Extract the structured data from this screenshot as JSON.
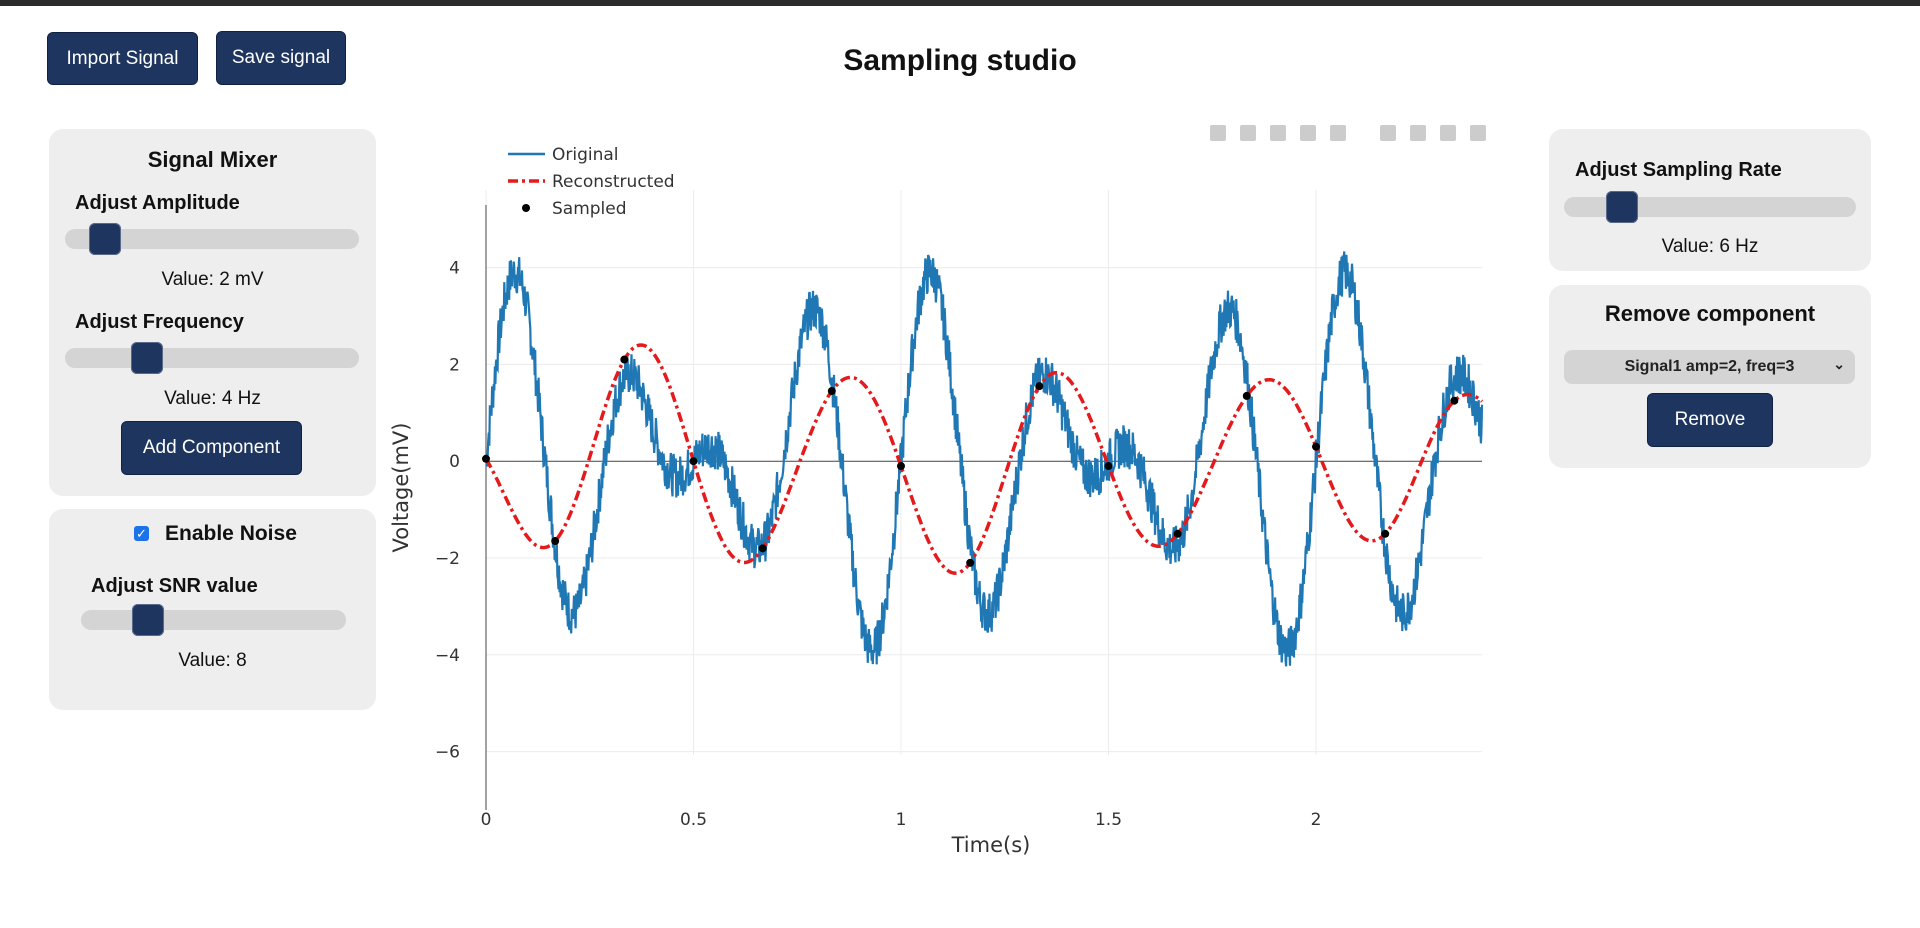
{
  "app_title": "Sampling studio",
  "header": {
    "import_label": "Import Signal",
    "save_label": "Save signal"
  },
  "mixer": {
    "title": "Signal Mixer",
    "amplitude_label": "Adjust Amplitude",
    "amplitude_value": "Value: 2 mV",
    "amplitude_level": 0.09,
    "frequency_label": "Adjust Frequency",
    "frequency_value": "Value: 4 Hz",
    "frequency_level": 0.25,
    "add_label": "Add Component"
  },
  "noise": {
    "enable_label": "Enable Noise",
    "enabled": true,
    "snr_label": "Adjust SNR value",
    "snr_value": "Value: 8",
    "snr_level": 0.22
  },
  "sampling": {
    "label": "Adjust Sampling Rate",
    "value": "Value: 6 Hz",
    "level": 0.16
  },
  "remove": {
    "title": "Remove component",
    "selected": "Signal1 amp=2, freq=3",
    "button_label": "Remove"
  },
  "chart_data": {
    "type": "line",
    "xlabel": "Time(s)",
    "ylabel": "Voltage(mV)",
    "xlim": [
      0,
      2.4
    ],
    "ylim": [
      -7,
      5.5
    ],
    "xticks": [
      0,
      0.5,
      1,
      1.5,
      2
    ],
    "xtick_labels": [
      "0",
      "0.5",
      "1",
      "1.5",
      "2"
    ],
    "yticks": [
      -6,
      -4,
      -2,
      0,
      2,
      4
    ],
    "ytick_labels": [
      "−6",
      "−4",
      "−2",
      "0",
      "2",
      "4"
    ],
    "grid": true,
    "legend_position": "top-left",
    "series": [
      {
        "name": "Original",
        "style": "solid",
        "color": "#1f77b4",
        "description_components": [
          {
            "amp": 2,
            "freq": 3
          },
          {
            "amp": 2,
            "freq": 4
          }
        ],
        "noise": true
      },
      {
        "name": "Reconstructed",
        "style": "dashdot",
        "color": "#e41a1c"
      },
      {
        "name": "Sampled",
        "style": "markers",
        "color": "#000000",
        "x": [
          0,
          0.1667,
          0.3333,
          0.5,
          0.6667,
          0.8333,
          1,
          1.1667,
          1.3333,
          1.5,
          1.6667,
          1.8333,
          2,
          2.1667,
          2.3333
        ],
        "y": [
          0.05,
          -1.65,
          2.1,
          0.0,
          -1.8,
          1.45,
          -0.1,
          -2.1,
          1.55,
          -0.1,
          -1.5,
          1.35,
          0.3,
          -1.5,
          1.25
        ]
      }
    ]
  }
}
